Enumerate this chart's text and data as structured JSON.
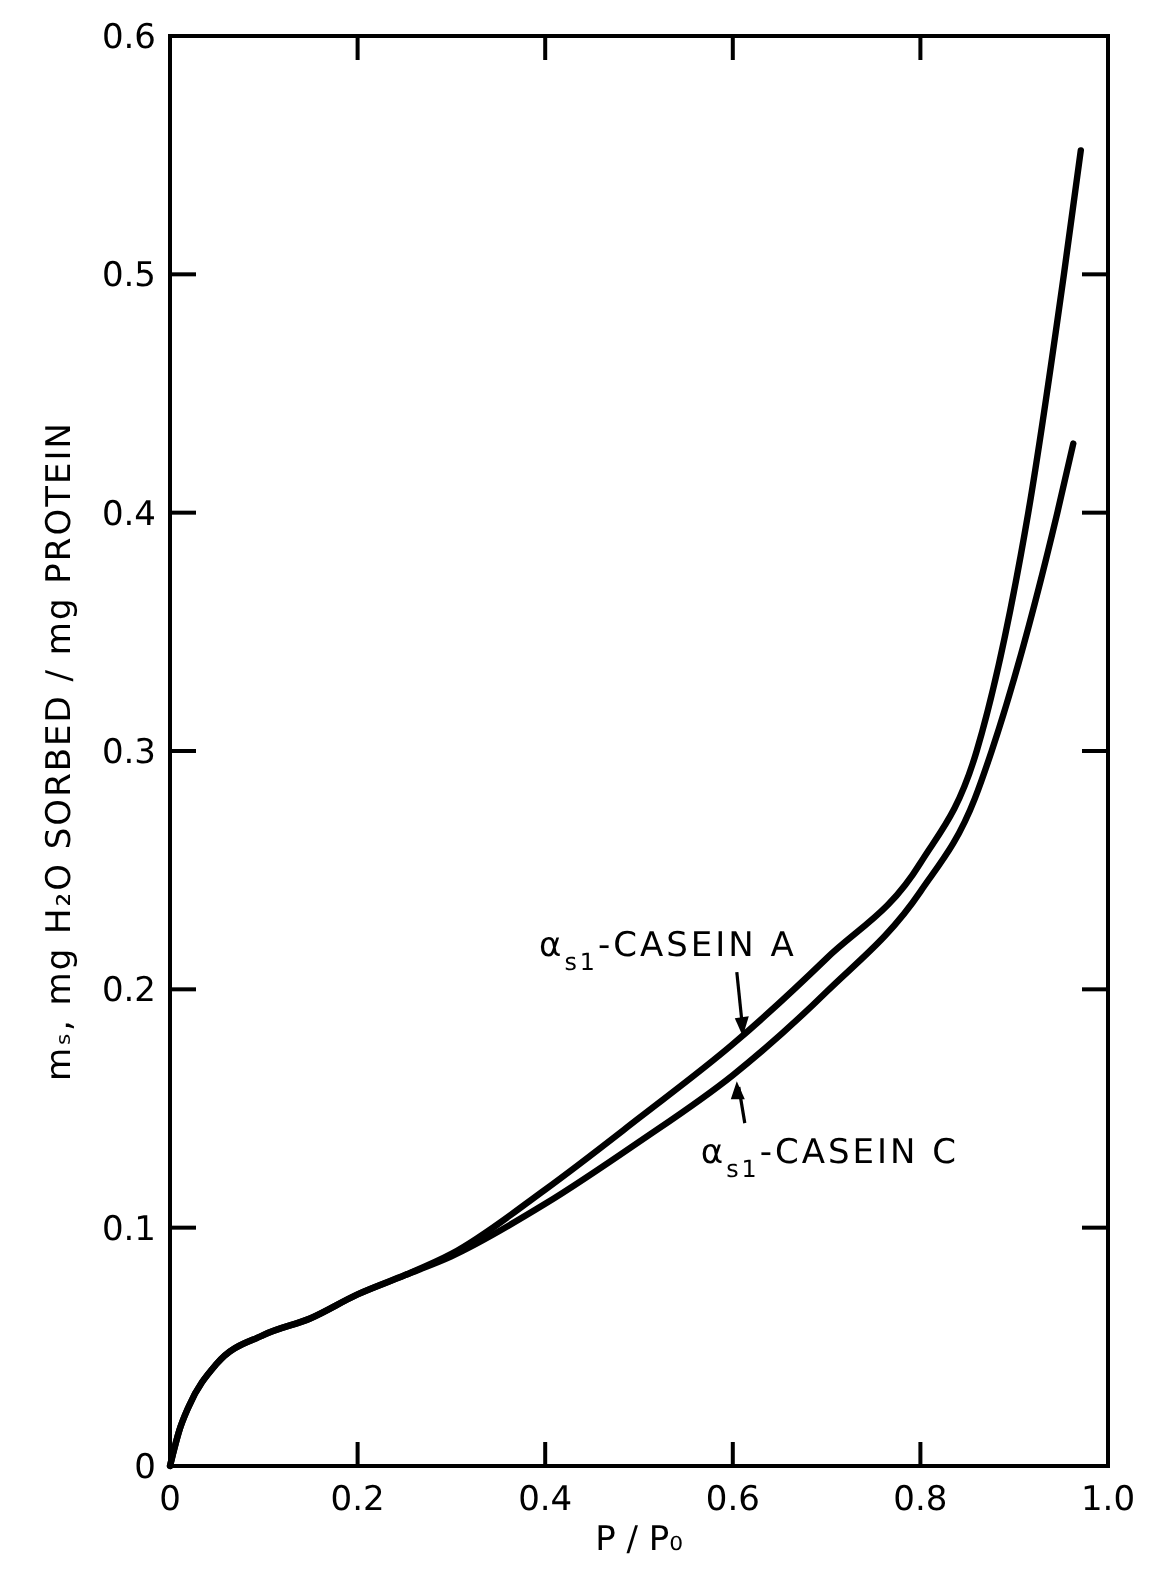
{
  "chart_data": {
    "type": "line",
    "xlabel": "P / P₀",
    "ylabel": "mₛ,  mg H₂O  SORBED / mg PROTEIN",
    "xlim": [
      0,
      1.0
    ],
    "ylim": [
      0,
      0.6
    ],
    "xticks": [
      0,
      0.2,
      0.4,
      0.6,
      0.8,
      {
        "value": 1.0,
        "label": "1.0"
      }
    ],
    "yticks": [
      0,
      0.1,
      0.2,
      0.3,
      0.4,
      0.5,
      0.6
    ],
    "grid": false,
    "marker": "none",
    "line_style": "solid",
    "series": [
      {
        "name": "α$_{s1}$-CASEIN A",
        "color": "#000000",
        "x": [
          0,
          0.01,
          0.02,
          0.05,
          0.1,
          0.15,
          0.2,
          0.25,
          0.3,
          0.4,
          0.5,
          0.6,
          0.7,
          0.8,
          0.86,
          0.915,
          0.953,
          0.971
        ],
        "values": [
          0,
          0.015,
          0.025,
          0.043,
          0.055,
          0.062,
          0.072,
          0.08,
          0.089,
          0.116,
          0.146,
          0.177,
          0.213,
          0.253,
          0.3,
          0.4,
          0.5,
          0.552
        ]
      },
      {
        "name": "α$_{s1}$-CASEIN C",
        "color": "#000000",
        "x": [
          0,
          0.01,
          0.02,
          0.05,
          0.1,
          0.15,
          0.2,
          0.25,
          0.3,
          0.4,
          0.5,
          0.6,
          0.7,
          0.8,
          0.858,
          0.876,
          0.946,
          0.963
        ],
        "values": [
          0,
          0.015,
          0.025,
          0.043,
          0.055,
          0.062,
          0.072,
          0.08,
          0.088,
          0.11,
          0.136,
          0.164,
          0.199,
          0.241,
          0.28,
          0.3,
          0.4,
          0.429
        ]
      }
    ]
  }
}
